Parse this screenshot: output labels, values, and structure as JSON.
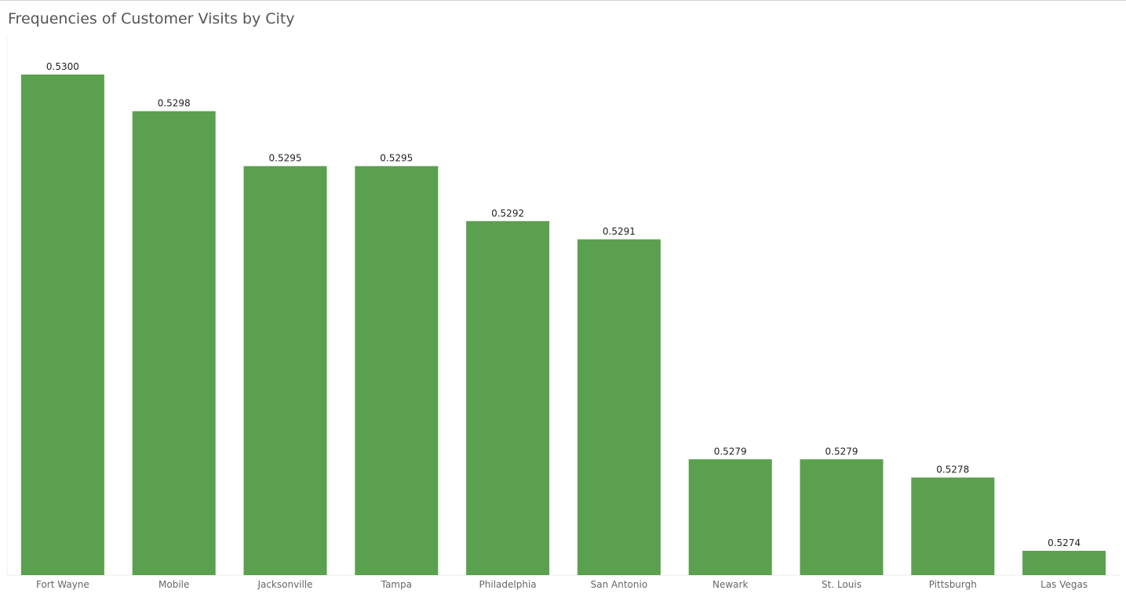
{
  "chart_data": {
    "type": "bar",
    "title": "Frequencies of Customer Visits by City",
    "xlabel": "",
    "ylabel": "",
    "categories": [
      "Fort Wayne",
      "Mobile",
      "Jacksonville",
      "Tampa",
      "Philadelphia",
      "San Antonio",
      "Newark",
      "St. Louis",
      "Pittsburgh",
      "Las Vegas"
    ],
    "values": [
      0.53,
      0.5298,
      0.5295,
      0.5295,
      0.5292,
      0.5291,
      0.5279,
      0.5279,
      0.5278,
      0.5274
    ],
    "data_labels": [
      "0.5300",
      "0.5298",
      "0.5295",
      "0.5295",
      "0.5292",
      "0.5291",
      "0.5279",
      "0.5279",
      "0.5278",
      "0.5274"
    ],
    "bar_color": "#5ba04e",
    "grid": false,
    "legend": "none"
  }
}
